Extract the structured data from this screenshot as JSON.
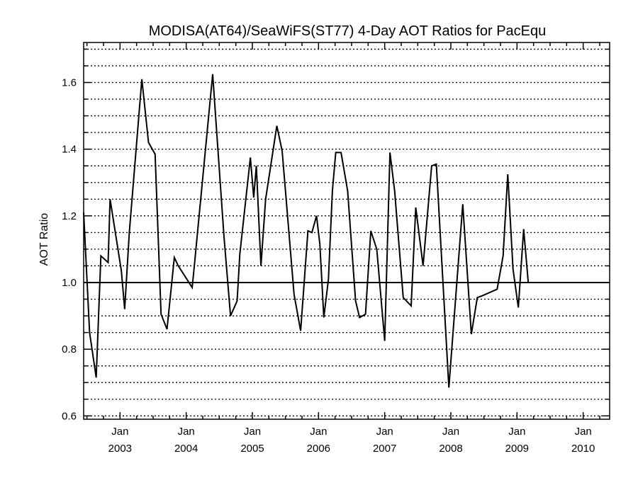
{
  "chart_data": {
    "type": "line",
    "title": "MODISA(AT64)/SeaWiFS(ST77) 4-Day AOT Ratios for PacEqu",
    "xlabel": "",
    "ylabel": "AOT Ratio",
    "xlim": [
      2002.45,
      2010.4
    ],
    "ylim": [
      0.59,
      1.72
    ],
    "grid": true,
    "grid_style": "dotted horizontal",
    "reference_line": 1.0,
    "line_color": "#000000",
    "y_ticks": [
      {
        "value": 0.6,
        "label": "0.6"
      },
      {
        "value": 0.8,
        "label": "0.8"
      },
      {
        "value": 1.0,
        "label": "1.0"
      },
      {
        "value": 1.2,
        "label": "1.2"
      },
      {
        "value": 1.4,
        "label": "1.4"
      },
      {
        "value": 1.6,
        "label": "1.6"
      }
    ],
    "x_ticks": [
      {
        "value": 2003.0,
        "month": "Jan",
        "year": "2003"
      },
      {
        "value": 2004.0,
        "month": "Jan",
        "year": "2004"
      },
      {
        "value": 2005.0,
        "month": "Jan",
        "year": "2005"
      },
      {
        "value": 2006.0,
        "month": "Jan",
        "year": "2006"
      },
      {
        "value": 2007.0,
        "month": "Jan",
        "year": "2007"
      },
      {
        "value": 2008.0,
        "month": "Jan",
        "year": "2008"
      },
      {
        "value": 2009.0,
        "month": "Jan",
        "year": "2009"
      },
      {
        "value": 2010.0,
        "month": "Jan",
        "year": "2010"
      }
    ],
    "series": [
      {
        "x": [
          2002.45,
          2002.54,
          2002.64,
          2002.71,
          2002.82,
          2002.85,
          2003.02,
          2003.07,
          2003.14,
          2003.33,
          2003.43,
          2003.53,
          2003.62,
          2003.71,
          2003.82,
          2003.88,
          2004.09,
          2004.12,
          2004.4,
          2004.57,
          2004.67,
          2004.77,
          2004.81,
          2004.97,
          2005.02,
          2005.06,
          2005.13,
          2005.2,
          2005.37,
          2005.45,
          2005.63,
          2005.73,
          2005.84,
          2005.9,
          2005.97,
          2006.02,
          2006.08,
          2006.15,
          2006.21,
          2006.26,
          2006.34,
          2006.44,
          2006.56,
          2006.62,
          2006.71,
          2006.79,
          2006.88,
          2007.0,
          2007.08,
          2007.15,
          2007.28,
          2007.4,
          2007.47,
          2007.58,
          2007.71,
          2007.78,
          2007.97,
          2008.18,
          2008.31,
          2008.4,
          2008.47,
          2008.7,
          2008.79,
          2008.86,
          2008.94,
          2009.02,
          2009.1,
          2009.17,
          2009.22,
          2009.54,
          2009.82,
          2009.91,
          2009.95,
          2010.07,
          2010.29,
          2010.35
        ],
        "y": [
          1.21,
          0.85,
          0.715,
          1.08,
          1.06,
          1.25,
          1.035,
          0.92,
          1.15,
          1.61,
          1.42,
          1.385,
          0.905,
          0.86,
          1.075,
          1.05,
          0.985,
          1.045,
          1.625,
          1.14,
          0.9,
          0.945,
          1.085,
          1.375,
          1.255,
          1.35,
          1.05,
          1.25,
          1.47,
          1.395,
          0.965,
          0.855,
          1.155,
          1.15,
          1.2,
          1.115,
          0.895,
          1.01,
          1.275,
          1.39,
          1.39,
          1.275,
          0.945,
          0.895,
          0.905,
          1.155,
          1.1,
          0.825,
          1.39,
          1.275,
          0.955,
          0.93,
          1.225,
          1.05,
          1.35,
          1.355,
          0.685,
          1.235,
          0.845,
          0.955,
          0.96,
          0.98,
          1.08,
          1.325,
          1.04,
          0.925,
          1.16,
          1.0,
          1.0,
          1.0,
          1.0,
          1.0,
          1.0,
          1.0,
          1.0,
          1.0
        ]
      }
    ]
  }
}
